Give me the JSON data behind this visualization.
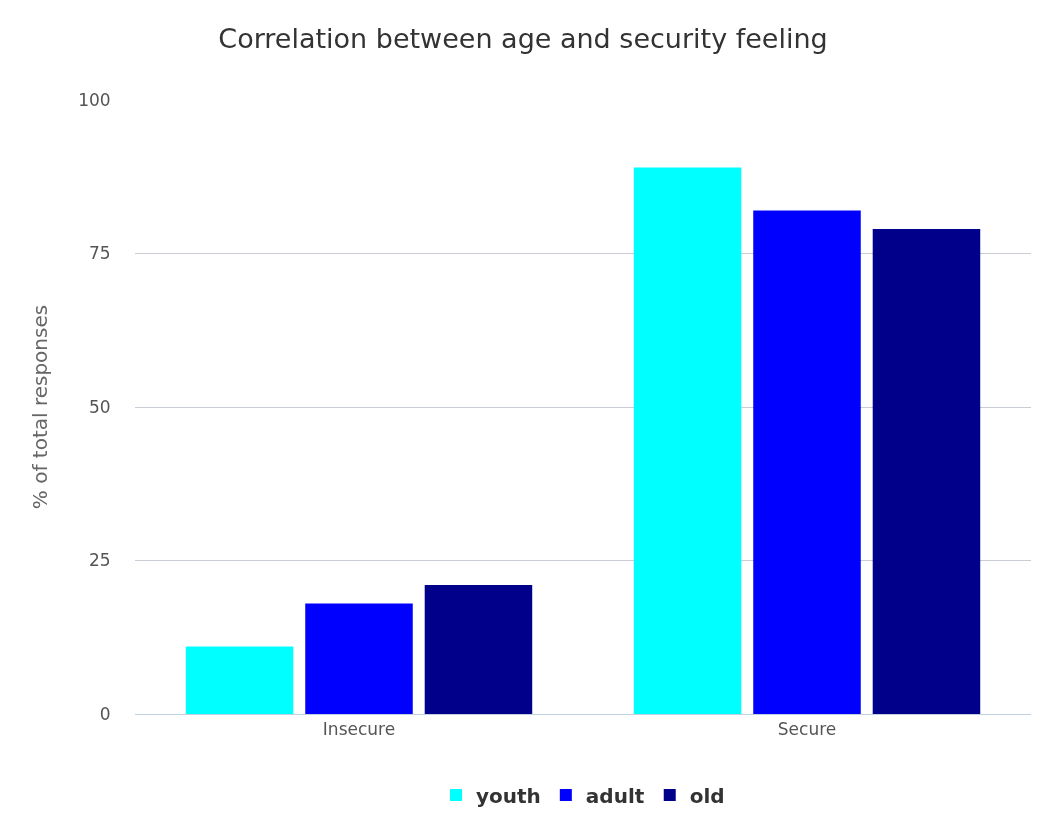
{
  "chart_data": {
    "type": "bar",
    "title": "Correlation between age and security feeling",
    "ylabel": "% of total responses",
    "categories": [
      "Insecure",
      "Secure"
    ],
    "series": [
      {
        "name": "youth",
        "color": "#00ffff",
        "values": [
          11,
          89
        ]
      },
      {
        "name": "adult",
        "color": "#0000ff",
        "values": [
          18,
          82
        ]
      },
      {
        "name": "old",
        "color": "#00008b",
        "values": [
          21,
          79
        ]
      }
    ],
    "ylim": [
      0,
      100
    ],
    "yticks": [
      0,
      25,
      50,
      75,
      100
    ],
    "grid": "y",
    "legend": "bottom"
  }
}
